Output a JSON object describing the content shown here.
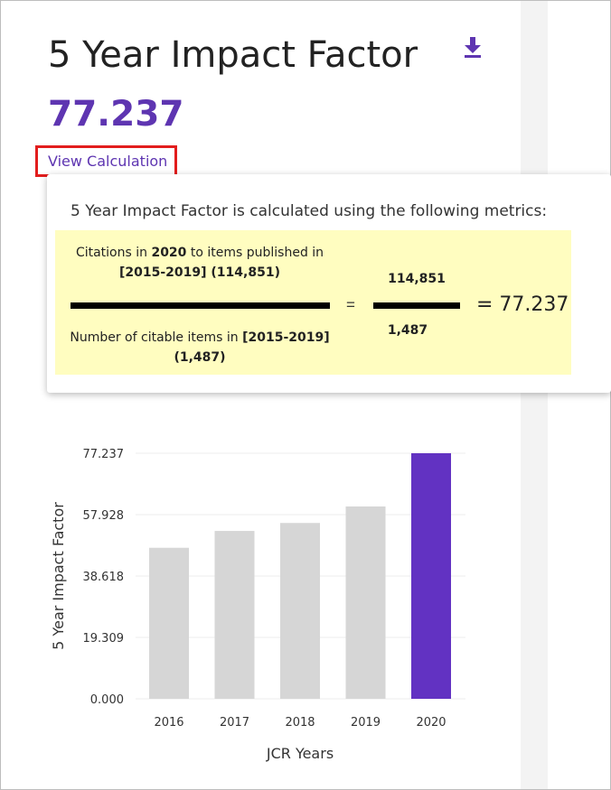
{
  "header": {
    "title": "5 Year Impact Factor",
    "value": "77.237",
    "view_calculation_label": "View Calculation",
    "download_icon": "download-icon"
  },
  "calculation": {
    "intro": "5 Year Impact Factor is calculated using the following metrics:",
    "numerator_pre": "Citations in ",
    "numerator_year": "2020",
    "numerator_mid": " to items published in",
    "numerator_range": "[2015-2019] (114,851)",
    "denominator_pre": "Number of citable items in ",
    "denominator_range": "[2015-2019]",
    "denominator_count": "(1,487)",
    "equals": "=",
    "numerator_value": "114,851",
    "denominator_value": "1,487",
    "result": "= 77.237"
  },
  "colors": {
    "accent": "#5e35b1",
    "bar_default": "#d6d6d6",
    "bar_highlight": "#6232c2",
    "formula_bg": "#fffdc0",
    "highlight_box": "#e21d1d"
  },
  "chart_data": {
    "type": "bar",
    "categories": [
      "2016",
      "2017",
      "2018",
      "2019",
      "2020"
    ],
    "values": [
      47.5,
      52.8,
      55.3,
      60.5,
      77.237
    ],
    "highlight_category": "2020",
    "xlabel": "JCR Years",
    "ylabel": "5 Year Impact Factor",
    "ylim": [
      0,
      77.237
    ],
    "yticks": [
      "0.000",
      "19.309",
      "38.618",
      "57.928",
      "77.237"
    ],
    "grid": true
  }
}
